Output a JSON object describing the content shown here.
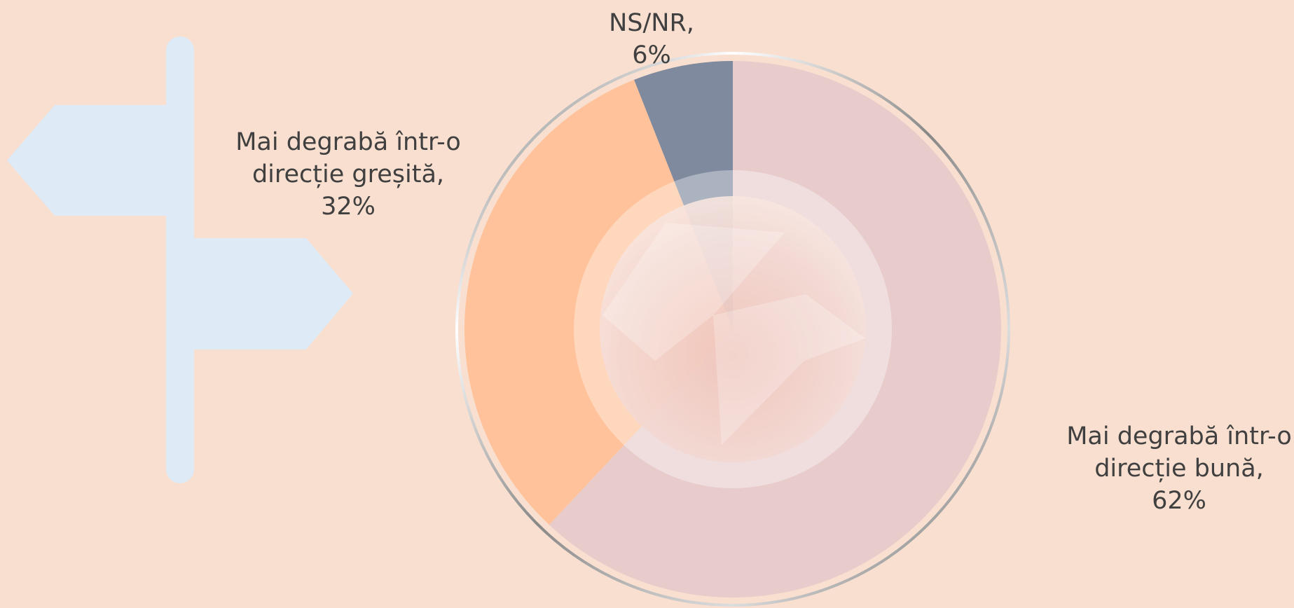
{
  "chart_data": {
    "type": "pie",
    "categories": [
      "Mai degrabă într-o direcție bună,",
      "Mai degrabă într-o direcție greșită,",
      "NS/NR,"
    ],
    "values": [
      62,
      32,
      6
    ],
    "value_labels": [
      "62%",
      "32%",
      "6%"
    ],
    "colors": [
      "#e8cccc",
      "#ffc29a",
      "#7f8a9e"
    ]
  }
}
